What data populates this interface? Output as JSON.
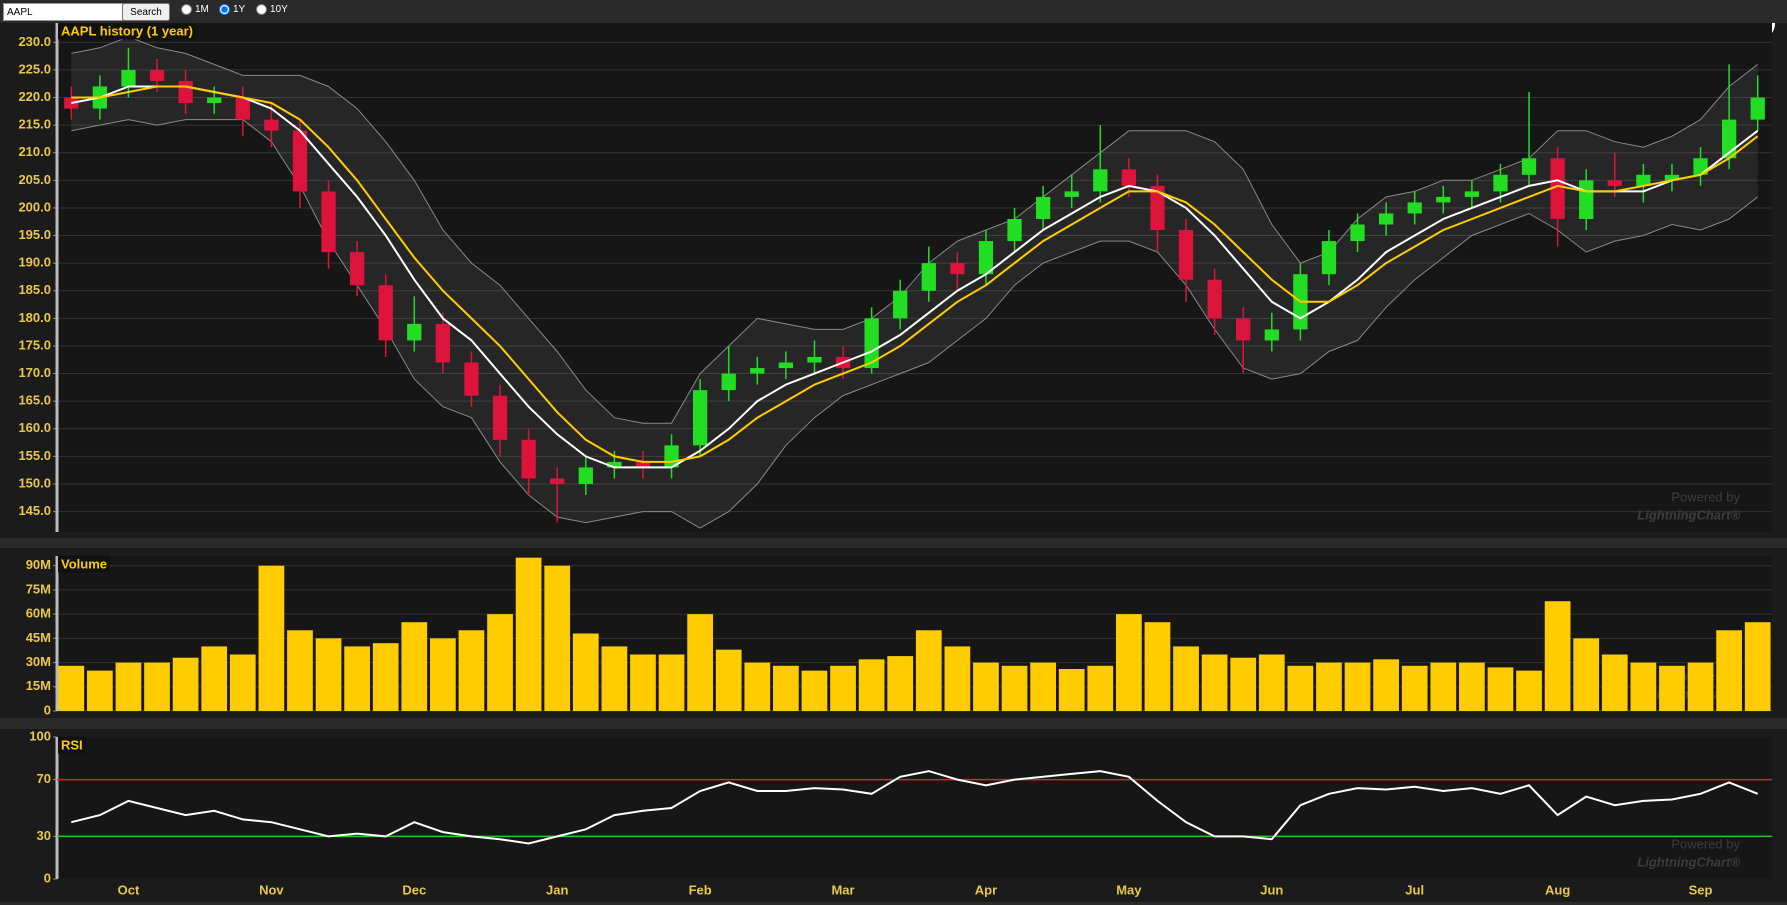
{
  "toolbar": {
    "search_value": "AAPL",
    "button": "Search",
    "ranges": [
      "1M",
      "1Y",
      "10Y"
    ],
    "selected": 1
  },
  "watermark": {
    "line1": "Powered by",
    "line2": "LightningChart®"
  },
  "chart_data": [
    {
      "type": "candlestick",
      "title": "AAPL history (1 year)",
      "up_color": "#22dd22",
      "down_color": "#dc143c",
      "open": [
        220,
        218,
        222,
        225,
        223,
        219,
        220,
        216,
        214,
        203,
        192,
        186,
        176,
        179,
        172,
        166,
        158,
        151,
        150,
        153,
        154,
        153,
        157,
        167,
        170,
        171,
        172,
        173,
        171,
        180,
        185,
        190,
        188,
        194,
        198,
        202,
        203,
        207,
        204,
        196,
        187,
        180,
        176,
        178,
        188,
        194,
        197,
        199,
        201,
        202,
        203,
        206,
        209,
        198,
        205,
        204,
        205,
        206,
        209,
        216
      ],
      "high": [
        222,
        224,
        229,
        227,
        225,
        222,
        222,
        219,
        216,
        205,
        194,
        188,
        184,
        181,
        174,
        168,
        160,
        153,
        155,
        156,
        156,
        159,
        169,
        175,
        173,
        174,
        176,
        175,
        182,
        187,
        193,
        192,
        196,
        200,
        204,
        206,
        215,
        209,
        206,
        198,
        189,
        182,
        181,
        190,
        196,
        199,
        201,
        203,
        204,
        205,
        208,
        221,
        211,
        207,
        210,
        208,
        208,
        211,
        226,
        224
      ],
      "low": [
        216,
        216,
        220,
        221,
        217,
        217,
        213,
        211,
        200,
        189,
        184,
        173,
        174,
        170,
        164,
        155,
        148,
        143,
        148,
        151,
        151,
        151,
        155,
        165,
        168,
        169,
        170,
        169,
        170,
        178,
        183,
        185,
        186,
        192,
        196,
        200,
        201,
        202,
        192,
        183,
        177,
        170,
        174,
        176,
        186,
        192,
        195,
        197,
        199,
        200,
        201,
        204,
        193,
        196,
        202,
        201,
        203,
        204,
        207,
        214
      ],
      "close": [
        218,
        222,
        225,
        223,
        219,
        220,
        216,
        214,
        203,
        192,
        186,
        176,
        179,
        172,
        166,
        158,
        151,
        150,
        153,
        154,
        153,
        157,
        167,
        170,
        171,
        172,
        173,
        171,
        180,
        185,
        190,
        188,
        194,
        198,
        202,
        203,
        207,
        204,
        196,
        187,
        180,
        176,
        178,
        188,
        194,
        197,
        199,
        201,
        202,
        203,
        206,
        209,
        198,
        205,
        204,
        206,
        206,
        209,
        216,
        220
      ],
      "bands": {
        "color": "#888888",
        "upper": [
          228,
          229,
          231,
          229,
          228,
          226,
          224,
          224,
          224,
          222,
          218,
          212,
          205,
          196,
          190,
          186,
          180,
          174,
          167,
          162,
          161,
          161,
          170,
          175,
          180,
          179,
          178,
          178,
          180,
          184,
          190,
          194,
          196,
          198,
          202,
          206,
          210,
          214,
          214,
          214,
          212,
          207,
          197,
          190,
          192,
          198,
          202,
          203,
          205,
          205,
          207,
          209,
          214,
          214,
          212,
          211,
          213,
          216,
          222,
          226
        ],
        "lower": [
          214,
          215,
          216,
          215,
          216,
          216,
          216,
          212,
          204,
          194,
          186,
          178,
          169,
          164,
          162,
          154,
          148,
          144,
          143,
          144,
          145,
          145,
          142,
          145,
          150,
          157,
          162,
          166,
          168,
          170,
          172,
          176,
          180,
          186,
          190,
          192,
          194,
          194,
          192,
          186,
          178,
          171,
          169,
          170,
          174,
          176,
          182,
          187,
          191,
          195,
          197,
          199,
          196,
          192,
          194,
          195,
          197,
          196,
          198,
          202
        ]
      },
      "overlays": [
        {
          "color": "#ffffff",
          "values": [
            219,
            220,
            222,
            222,
            222,
            221,
            220,
            218,
            214,
            208,
            202,
            195,
            187,
            180,
            176,
            170,
            164,
            159,
            155,
            153,
            153,
            153,
            156,
            160,
            165,
            168,
            170,
            172,
            174,
            177,
            181,
            185,
            188,
            192,
            196,
            199,
            202,
            204,
            203,
            200,
            195,
            189,
            183,
            180,
            183,
            187,
            192,
            195,
            198,
            200,
            202,
            204,
            205,
            203,
            203,
            203,
            205,
            206,
            210,
            214
          ]
        },
        {
          "color": "#ffcc00",
          "values": [
            220,
            220,
            221,
            222,
            222,
            221,
            220,
            219,
            216,
            211,
            205,
            198,
            191,
            185,
            180,
            175,
            169,
            163,
            158,
            155,
            154,
            154,
            155,
            158,
            162,
            165,
            168,
            170,
            172,
            175,
            179,
            183,
            186,
            190,
            194,
            197,
            200,
            203,
            203,
            201,
            197,
            192,
            187,
            183,
            183,
            186,
            190,
            193,
            196,
            198,
            200,
            202,
            204,
            203,
            203,
            204,
            205,
            206,
            209,
            213
          ]
        }
      ],
      "ylim": [
        141.3,
        233.5
      ],
      "grid": true,
      "yticks": [
        {
          "value": 145,
          "label": "145.0"
        },
        {
          "value": 150,
          "label": "150.0"
        },
        {
          "value": 155,
          "label": "155.0"
        },
        {
          "value": 160,
          "label": "160.0"
        },
        {
          "value": 165,
          "label": "165.0"
        },
        {
          "value": 170,
          "label": "170.0"
        },
        {
          "value": 175,
          "label": "175.0"
        },
        {
          "value": 180,
          "label": "180.0"
        },
        {
          "value": 185,
          "label": "185.0"
        },
        {
          "value": 190,
          "label": "190.0"
        },
        {
          "value": 195,
          "label": "195.0"
        },
        {
          "value": 200,
          "label": "200.0"
        },
        {
          "value": 205,
          "label": "205.0"
        },
        {
          "value": 210,
          "label": "210.0"
        },
        {
          "value": 215,
          "label": "215.0"
        },
        {
          "value": 220,
          "label": "220.0"
        },
        {
          "value": 225,
          "label": "225.0"
        },
        {
          "value": 230,
          "label": "230.0"
        }
      ]
    },
    {
      "type": "bar",
      "title": "Volume",
      "color": "#ffcc00",
      "values": [
        28000000,
        25000000,
        30000000,
        30000000,
        33000000,
        40000000,
        35000000,
        90000000,
        50000000,
        45000000,
        40000000,
        42000000,
        55000000,
        45000000,
        50000000,
        60000000,
        95000000,
        90000000,
        48000000,
        40000000,
        35000000,
        35000000,
        60000000,
        38000000,
        30000000,
        28000000,
        25000000,
        28000000,
        32000000,
        34000000,
        50000000,
        40000000,
        30000000,
        28000000,
        30000000,
        26000000,
        28000000,
        60000000,
        55000000,
        40000000,
        35000000,
        33000000,
        35000000,
        28000000,
        30000000,
        30000000,
        32000000,
        28000000,
        30000000,
        30000000,
        27000000,
        25000000,
        68000000,
        45000000,
        35000000,
        30000000,
        28000000,
        30000000,
        50000000,
        55000000
      ],
      "ylim": [
        0,
        96000000
      ],
      "grid": true,
      "yticks": [
        0,
        {
          "value": 15000000,
          "label": "15M"
        },
        {
          "value": 30000000,
          "label": "30M"
        },
        {
          "value": 45000000,
          "label": "45M"
        },
        {
          "value": 60000000,
          "label": "60M"
        },
        {
          "value": 75000000,
          "label": "75M"
        },
        {
          "value": 90000000,
          "label": "90M"
        }
      ]
    },
    {
      "type": "line",
      "title": "RSI",
      "color": "#ffffff",
      "categories": [
        null,
        null,
        "Oct",
        null,
        null,
        null,
        null,
        "Nov",
        null,
        null,
        null,
        null,
        "Dec",
        null,
        null,
        null,
        null,
        "Jan",
        null,
        null,
        null,
        null,
        "Feb",
        null,
        null,
        null,
        null,
        "Mar",
        null,
        null,
        null,
        null,
        "Apr",
        null,
        null,
        null,
        null,
        "May",
        null,
        null,
        null,
        null,
        "Jun",
        null,
        null,
        null,
        null,
        "Jul",
        null,
        null,
        null,
        null,
        "Aug",
        null,
        null,
        null,
        null,
        "Sep",
        null,
        null
      ],
      "values": [
        40,
        45,
        55,
        50,
        45,
        48,
        42,
        40,
        35,
        30,
        32,
        30,
        40,
        33,
        30,
        28,
        25,
        30,
        35,
        45,
        48,
        50,
        62,
        68,
        62,
        62,
        64,
        63,
        60,
        72,
        76,
        70,
        66,
        70,
        72,
        74,
        76,
        72,
        55,
        40,
        30,
        30,
        28,
        52,
        60,
        64,
        63,
        65,
        62,
        64,
        60,
        66,
        45,
        58,
        52,
        55,
        56,
        60,
        68,
        60
      ],
      "thresholds": [
        {
          "value": 70,
          "color": "#e0202a"
        },
        {
          "value": 30,
          "color": "#22cc22"
        }
      ],
      "ylim": [
        0,
        100
      ],
      "yticks": [
        0,
        30,
        70,
        100
      ]
    }
  ]
}
